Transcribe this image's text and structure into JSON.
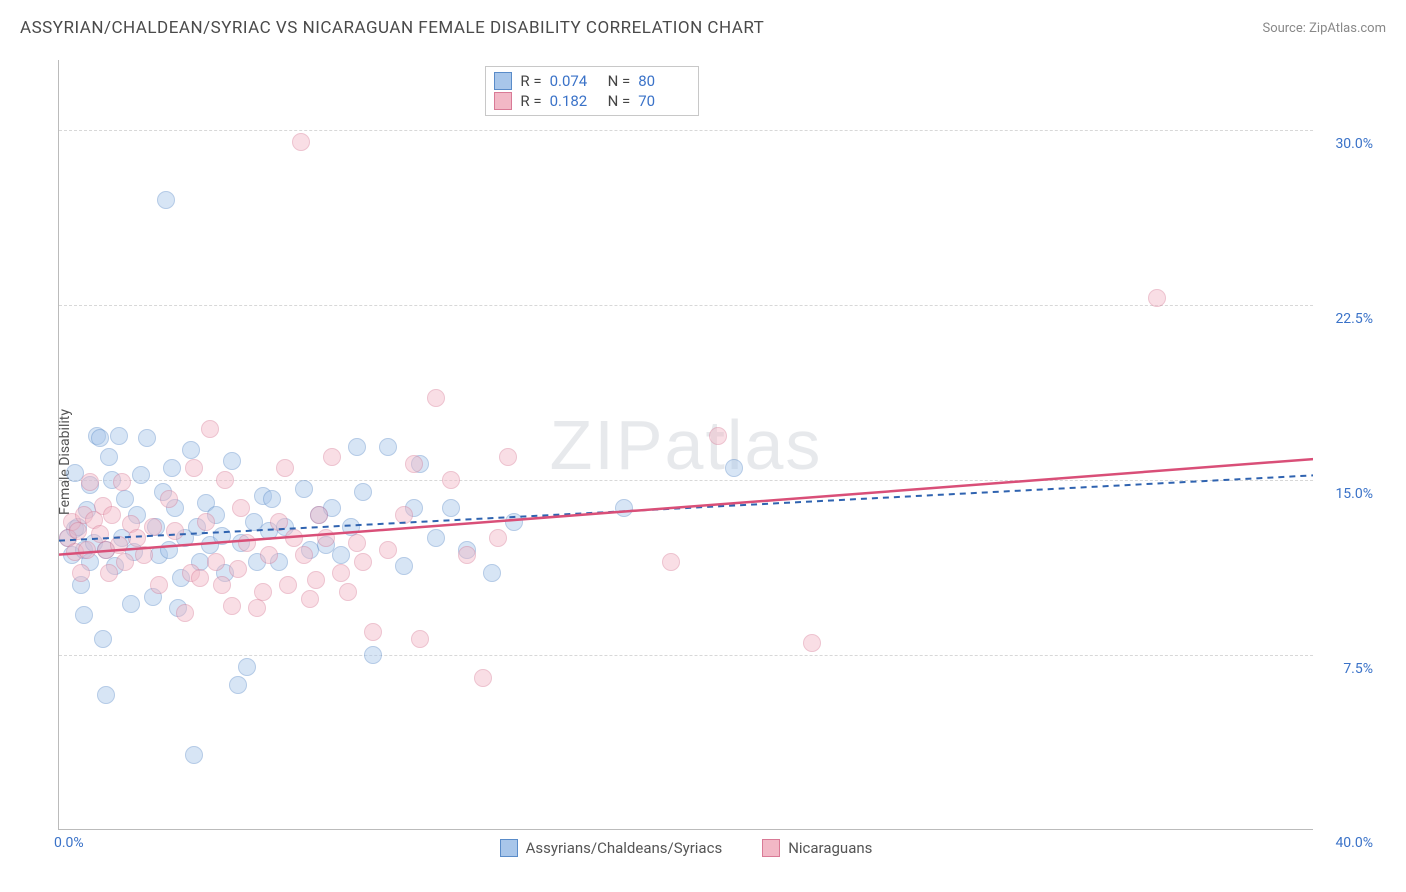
{
  "title": "ASSYRIAN/CHALDEAN/SYRIAC VS NICARAGUAN FEMALE DISABILITY CORRELATION CHART",
  "source": "Source: ZipAtlas.com",
  "ylabel": "Female Disability",
  "watermark": "ZIPatlas",
  "chart": {
    "type": "scatter",
    "xlim": [
      0,
      40
    ],
    "ylim": [
      0,
      33
    ],
    "background_color": "#ffffff",
    "grid_color": "#d8d8d8",
    "grid_dash": true,
    "y_gridlines": [
      7.5,
      15.0,
      22.5,
      30.0
    ],
    "y_tick_labels": [
      "7.5%",
      "15.0%",
      "22.5%",
      "30.0%"
    ],
    "x_start_label": "0.0%",
    "x_end_label": "40.0%",
    "axis_text_color": "#3a72c8",
    "point_radius": 9,
    "point_opacity": 0.45,
    "stats_box_left_pct": 34
  },
  "series": [
    {
      "name": "Assyrians/Chaldeans/Syriacs",
      "fill": "#a8c6ea",
      "stroke": "#5a8cc9",
      "line_color": "#2f63b0",
      "line_dash": true,
      "line_width": 2,
      "r_label": "R =",
      "r_value": "0.074",
      "n_label": "N =",
      "n_value": "80",
      "trend": {
        "x1": 0,
        "y1": 12.4,
        "x2": 40,
        "y2": 15.2
      },
      "points": [
        [
          0.3,
          12.5
        ],
        [
          0.4,
          11.8
        ],
        [
          0.5,
          12.9
        ],
        [
          0.5,
          15.3
        ],
        [
          0.6,
          13.0
        ],
        [
          0.7,
          10.5
        ],
        [
          0.8,
          9.2
        ],
        [
          0.8,
          12.0
        ],
        [
          0.9,
          13.7
        ],
        [
          1.0,
          11.5
        ],
        [
          1.0,
          14.8
        ],
        [
          1.1,
          12.3
        ],
        [
          1.2,
          16.9
        ],
        [
          1.3,
          16.8
        ],
        [
          1.4,
          8.2
        ],
        [
          1.5,
          12.0
        ],
        [
          1.5,
          5.8
        ],
        [
          1.6,
          16.0
        ],
        [
          1.7,
          15.0
        ],
        [
          1.8,
          11.3
        ],
        [
          1.9,
          16.9
        ],
        [
          2.0,
          12.5
        ],
        [
          2.1,
          14.2
        ],
        [
          2.3,
          9.7
        ],
        [
          2.4,
          11.9
        ],
        [
          2.5,
          13.5
        ],
        [
          2.6,
          15.2
        ],
        [
          2.8,
          16.8
        ],
        [
          3.0,
          10.0
        ],
        [
          3.1,
          13.0
        ],
        [
          3.2,
          11.8
        ],
        [
          3.3,
          14.5
        ],
        [
          3.4,
          27.0
        ],
        [
          3.5,
          12.0
        ],
        [
          3.6,
          15.5
        ],
        [
          3.7,
          13.8
        ],
        [
          3.8,
          9.5
        ],
        [
          3.9,
          10.8
        ],
        [
          4.0,
          12.5
        ],
        [
          4.2,
          16.3
        ],
        [
          4.3,
          3.2
        ],
        [
          4.4,
          13.0
        ],
        [
          4.5,
          11.5
        ],
        [
          4.7,
          14.0
        ],
        [
          4.8,
          12.2
        ],
        [
          5.0,
          13.5
        ],
        [
          5.2,
          12.6
        ],
        [
          5.3,
          11.0
        ],
        [
          5.5,
          15.8
        ],
        [
          5.7,
          6.2
        ],
        [
          5.8,
          12.3
        ],
        [
          6.0,
          7.0
        ],
        [
          6.2,
          13.2
        ],
        [
          6.3,
          11.5
        ],
        [
          6.5,
          14.3
        ],
        [
          6.7,
          12.8
        ],
        [
          6.8,
          14.2
        ],
        [
          7.0,
          11.5
        ],
        [
          7.2,
          13.0
        ],
        [
          7.8,
          14.6
        ],
        [
          8.0,
          12.0
        ],
        [
          8.3,
          13.5
        ],
        [
          8.5,
          12.2
        ],
        [
          8.7,
          13.8
        ],
        [
          9.0,
          11.8
        ],
        [
          9.3,
          13.0
        ],
        [
          9.5,
          16.4
        ],
        [
          9.7,
          14.5
        ],
        [
          10.0,
          7.5
        ],
        [
          10.5,
          16.4
        ],
        [
          11.0,
          11.3
        ],
        [
          11.3,
          13.8
        ],
        [
          11.5,
          15.7
        ],
        [
          12.0,
          12.5
        ],
        [
          12.5,
          13.8
        ],
        [
          13.0,
          12.0
        ],
        [
          13.8,
          11.0
        ],
        [
          14.5,
          13.2
        ],
        [
          18.0,
          13.8
        ],
        [
          21.5,
          15.5
        ]
      ]
    },
    {
      "name": "Nicaraguans",
      "fill": "#f2b8c6",
      "stroke": "#d97a96",
      "line_color": "#d94f78",
      "line_dash": false,
      "line_width": 2.5,
      "r_label": "R =",
      "r_value": "0.182",
      "n_label": "N =",
      "n_value": "70",
      "trend": {
        "x1": 0,
        "y1": 11.8,
        "x2": 40,
        "y2": 15.9
      },
      "points": [
        [
          0.3,
          12.5
        ],
        [
          0.4,
          13.2
        ],
        [
          0.5,
          11.9
        ],
        [
          0.6,
          12.8
        ],
        [
          0.7,
          11.0
        ],
        [
          0.8,
          13.5
        ],
        [
          0.9,
          12.0
        ],
        [
          1.0,
          14.9
        ],
        [
          1.1,
          13.3
        ],
        [
          1.3,
          12.7
        ],
        [
          1.4,
          13.9
        ],
        [
          1.5,
          12.0
        ],
        [
          1.6,
          11.0
        ],
        [
          1.7,
          13.5
        ],
        [
          1.9,
          12.2
        ],
        [
          2.0,
          14.9
        ],
        [
          2.1,
          11.5
        ],
        [
          2.3,
          13.1
        ],
        [
          2.5,
          12.5
        ],
        [
          2.7,
          11.8
        ],
        [
          3.0,
          13.0
        ],
        [
          3.2,
          10.5
        ],
        [
          3.5,
          14.2
        ],
        [
          3.7,
          12.8
        ],
        [
          4.0,
          9.3
        ],
        [
          4.2,
          11.0
        ],
        [
          4.3,
          15.5
        ],
        [
          4.5,
          10.8
        ],
        [
          4.7,
          13.2
        ],
        [
          4.8,
          17.2
        ],
        [
          5.0,
          11.5
        ],
        [
          5.2,
          10.5
        ],
        [
          5.3,
          15.0
        ],
        [
          5.5,
          9.6
        ],
        [
          5.7,
          11.2
        ],
        [
          5.8,
          13.8
        ],
        [
          6.0,
          12.3
        ],
        [
          6.3,
          9.5
        ],
        [
          6.5,
          10.2
        ],
        [
          6.7,
          11.8
        ],
        [
          7.0,
          13.2
        ],
        [
          7.2,
          15.5
        ],
        [
          7.3,
          10.5
        ],
        [
          7.5,
          12.5
        ],
        [
          7.7,
          29.5
        ],
        [
          7.8,
          11.8
        ],
        [
          8.0,
          9.9
        ],
        [
          8.2,
          10.7
        ],
        [
          8.3,
          13.5
        ],
        [
          8.5,
          12.5
        ],
        [
          8.7,
          16.0
        ],
        [
          9.0,
          11.0
        ],
        [
          9.2,
          10.2
        ],
        [
          9.5,
          12.3
        ],
        [
          9.7,
          11.5
        ],
        [
          10.0,
          8.5
        ],
        [
          10.5,
          12.0
        ],
        [
          11.0,
          13.5
        ],
        [
          11.3,
          15.7
        ],
        [
          11.5,
          8.2
        ],
        [
          12.0,
          18.5
        ],
        [
          12.5,
          15.0
        ],
        [
          13.0,
          11.8
        ],
        [
          13.5,
          6.5
        ],
        [
          14.0,
          12.5
        ],
        [
          14.3,
          16.0
        ],
        [
          19.5,
          11.5
        ],
        [
          21.0,
          16.9
        ],
        [
          24.0,
          8.0
        ],
        [
          35.0,
          22.8
        ]
      ]
    }
  ]
}
